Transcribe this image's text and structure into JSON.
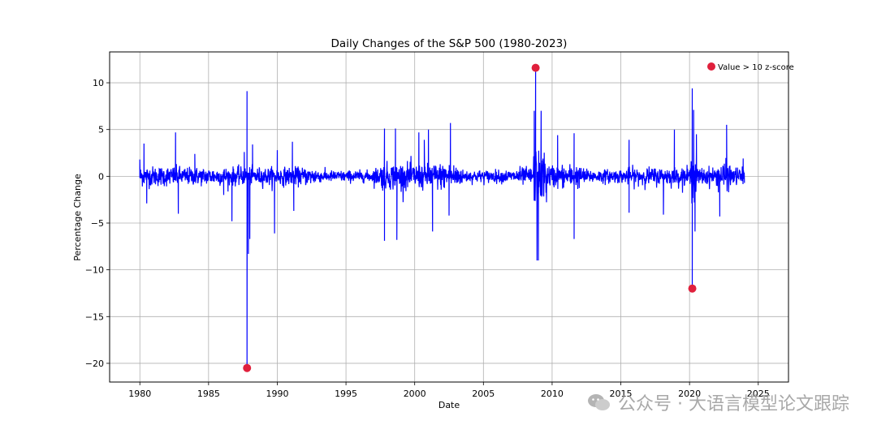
{
  "chart_data": {
    "type": "line",
    "title": "Daily Changes of the S&P 500 (1980-2023)",
    "xlabel": "Date",
    "ylabel": "Percentage Change",
    "xlim": [
      1977.8,
      2027.2
    ],
    "ylim": [
      -22,
      13.3
    ],
    "xticks": [
      1980,
      1985,
      1990,
      1995,
      2000,
      2005,
      2010,
      2015,
      2020,
      2025
    ],
    "yticks": [
      10,
      5,
      0,
      -5,
      -10,
      -15,
      -20
    ],
    "ytick_labels": [
      "10",
      "5",
      "0",
      "−5",
      "−10",
      "−15",
      "−20"
    ],
    "grid": true,
    "legend_position": "top-right",
    "colors": {
      "line": "#0000ff",
      "outlier": "#e0203c",
      "grid": "#b0b0b0"
    },
    "series": [
      {
        "name": "",
        "style": "line",
        "description_points": [
          {
            "x": 1980.0,
            "y": 1.8
          },
          {
            "x": 1980.3,
            "y": 3.5
          },
          {
            "x": 1980.5,
            "y": -2.9
          },
          {
            "x": 1982.6,
            "y": 4.7
          },
          {
            "x": 1982.8,
            "y": -4.0
          },
          {
            "x": 1984.0,
            "y": 2.4
          },
          {
            "x": 1986.1,
            "y": -2.0
          },
          {
            "x": 1986.7,
            "y": -4.8
          },
          {
            "x": 1987.6,
            "y": 2.6
          },
          {
            "x": 1987.8,
            "y": 9.1
          },
          {
            "x": 1987.9,
            "y": -8.3
          },
          {
            "x": 1988.0,
            "y": -6.7
          },
          {
            "x": 1988.2,
            "y": 3.4
          },
          {
            "x": 1989.8,
            "y": -6.1
          },
          {
            "x": 1990.0,
            "y": 2.8
          },
          {
            "x": 1991.1,
            "y": 3.7
          },
          {
            "x": 1991.2,
            "y": -3.7
          },
          {
            "x": 1997.8,
            "y": 5.1
          },
          {
            "x": 1997.8,
            "y": -6.9
          },
          {
            "x": 1998.6,
            "y": 5.1
          },
          {
            "x": 1998.7,
            "y": -6.8
          },
          {
            "x": 2000.3,
            "y": 4.7
          },
          {
            "x": 2000.7,
            "y": 3.9
          },
          {
            "x": 2001.0,
            "y": 5.0
          },
          {
            "x": 2001.3,
            "y": -5.9
          },
          {
            "x": 2002.6,
            "y": 5.7
          },
          {
            "x": 2002.5,
            "y": -4.2
          },
          {
            "x": 2008.7,
            "y": 7.0
          },
          {
            "x": 2008.9,
            "y": -9.0
          },
          {
            "x": 2009.0,
            "y": -9.0
          },
          {
            "x": 2009.2,
            "y": 7.0
          },
          {
            "x": 2010.4,
            "y": 4.4
          },
          {
            "x": 2011.6,
            "y": 4.6
          },
          {
            "x": 2011.6,
            "y": -6.7
          },
          {
            "x": 2015.6,
            "y": 3.9
          },
          {
            "x": 2015.6,
            "y": -3.9
          },
          {
            "x": 2018.1,
            "y": -4.1
          },
          {
            "x": 2018.9,
            "y": 5.0
          },
          {
            "x": 2020.2,
            "y": 9.4
          },
          {
            "x": 2020.3,
            "y": 7.1
          },
          {
            "x": 2020.4,
            "y": -5.9
          },
          {
            "x": 2020.5,
            "y": 4.5
          },
          {
            "x": 2022.2,
            "y": -4.3
          },
          {
            "x": 2022.7,
            "y": 5.5
          },
          {
            "x": 2023.9,
            "y": 1.9
          }
        ]
      },
      {
        "name": "Value > 10 z-score",
        "style": "markers",
        "points": [
          {
            "x": 1987.8,
            "y": -20.5
          },
          {
            "x": 2008.8,
            "y": 11.6
          },
          {
            "x": 2020.2,
            "y": -12.0
          }
        ]
      }
    ]
  },
  "watermark": {
    "text": "公众号 · 大语言模型论文跟踪",
    "icon": "wechat-icon"
  }
}
